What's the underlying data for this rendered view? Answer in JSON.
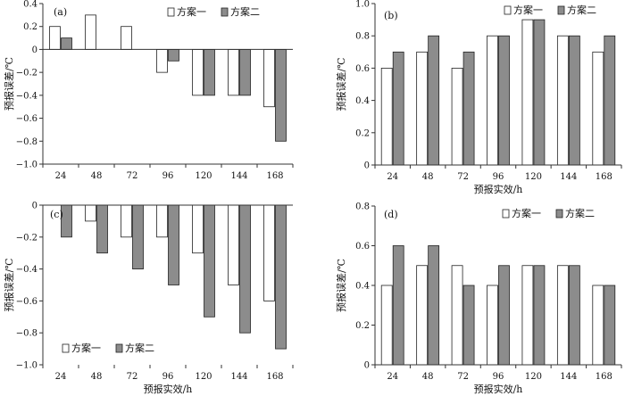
{
  "colors": {
    "scheme1": "#ffffff",
    "scheme2": "#8c8c8c",
    "stroke": "#222222",
    "axis": "#333333"
  },
  "chart_data": [
    {
      "type": "bar",
      "panel_label": "(a)",
      "categories": [
        "24",
        "48",
        "72",
        "96",
        "120",
        "144",
        "168"
      ],
      "series": [
        {
          "name": "方案一",
          "values": [
            0.2,
            0.3,
            0.2,
            -0.2,
            -0.4,
            -0.4,
            -0.5
          ]
        },
        {
          "name": "方案二",
          "values": [
            0.1,
            0,
            0,
            -0.1,
            -0.4,
            -0.4,
            -0.8
          ]
        }
      ],
      "ylabel": "预报误差/℃",
      "xlabel": "",
      "ylim": [
        -1.0,
        0.4
      ],
      "yticks": [
        -1.0,
        -0.8,
        -0.6,
        -0.4,
        -0.2,
        0,
        0.2,
        0.4
      ],
      "ytick_labels": [
        "−1.0",
        "−0.8",
        "−0.6",
        "−0.4",
        "−0.2",
        "0",
        "0.2",
        "0.4"
      ],
      "legend_position": "top-right"
    },
    {
      "type": "bar",
      "panel_label": "(b)",
      "categories": [
        "24",
        "48",
        "72",
        "96",
        "120",
        "144",
        "168"
      ],
      "series": [
        {
          "name": "方案一",
          "values": [
            0.6,
            0.7,
            0.6,
            0.8,
            0.9,
            0.8,
            0.7
          ]
        },
        {
          "name": "方案二",
          "values": [
            0.7,
            0.8,
            0.7,
            0.8,
            0.9,
            0.8,
            0.8
          ]
        }
      ],
      "ylabel": "预报误差/℃",
      "xlabel": "预报实效/h",
      "ylim": [
        0,
        1.0
      ],
      "yticks": [
        0,
        0.2,
        0.4,
        0.6,
        0.8,
        1.0
      ],
      "ytick_labels": [
        "0",
        "0.2",
        "0.4",
        "0.6",
        "0.8",
        "1.0"
      ],
      "legend_position": "top-right"
    },
    {
      "type": "bar",
      "panel_label": "(c)",
      "categories": [
        "24",
        "48",
        "72",
        "96",
        "120",
        "144",
        "168"
      ],
      "series": [
        {
          "name": "方案一",
          "values": [
            0,
            -0.1,
            -0.2,
            -0.2,
            -0.3,
            -0.5,
            -0.6
          ]
        },
        {
          "name": "方案二",
          "values": [
            -0.2,
            -0.3,
            -0.4,
            -0.5,
            -0.7,
            -0.8,
            -0.9
          ]
        }
      ],
      "ylabel": "预报误差/℃",
      "xlabel": "预报实效/h",
      "ylim": [
        -1.0,
        0
      ],
      "yticks": [
        -1.0,
        -0.8,
        -0.6,
        -0.4,
        -0.2,
        0
      ],
      "ytick_labels": [
        "−1.0",
        "−0.8",
        "−0.6",
        "−0.4",
        "−0.2",
        "0"
      ],
      "legend_position": "bottom-left"
    },
    {
      "type": "bar",
      "panel_label": "(d)",
      "categories": [
        "24",
        "48",
        "72",
        "96",
        "120",
        "144",
        "168"
      ],
      "series": [
        {
          "name": "方案一",
          "values": [
            0.4,
            0.5,
            0.5,
            0.4,
            0.5,
            0.5,
            0.4
          ]
        },
        {
          "name": "方案二",
          "values": [
            0.6,
            0.6,
            0.4,
            0.5,
            0.5,
            0.5,
            0.4
          ]
        }
      ],
      "ylabel": "预报误差/℃",
      "xlabel": "预报实效/h",
      "ylim": [
        0,
        0.8
      ],
      "yticks": [
        0,
        0.2,
        0.4,
        0.6,
        0.8
      ],
      "ytick_labels": [
        "0",
        "0.2",
        "0.4",
        "0.6",
        "0.8"
      ],
      "legend_position": "top-right"
    }
  ]
}
